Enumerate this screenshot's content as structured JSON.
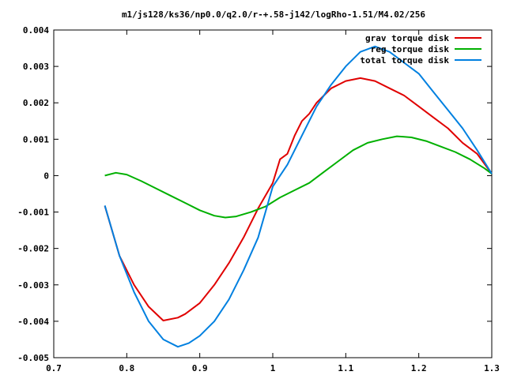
{
  "chart_data": {
    "type": "line",
    "title": "m1/js128/ks36/np0.0/q2.0/r-+.58-j142/logRho-1.51/M4.02/256",
    "xlabel": "",
    "ylabel": "",
    "xlim": [
      0.7,
      1.3
    ],
    "ylim": [
      -0.005,
      0.004
    ],
    "grid": false,
    "legend_position": "top-right",
    "x_ticks": [
      {
        "value": 0.7,
        "label": "0.7"
      },
      {
        "value": 0.8,
        "label": "0.8"
      },
      {
        "value": 0.9,
        "label": "0.9"
      },
      {
        "value": 1.0,
        "label": "1"
      },
      {
        "value": 1.1,
        "label": "1.1"
      },
      {
        "value": 1.2,
        "label": "1.2"
      },
      {
        "value": 1.3,
        "label": "1.3"
      }
    ],
    "y_ticks": [
      {
        "value": -0.005,
        "label": "-0.005"
      },
      {
        "value": -0.004,
        "label": "-0.004"
      },
      {
        "value": -0.003,
        "label": "-0.003"
      },
      {
        "value": -0.002,
        "label": "-0.002"
      },
      {
        "value": -0.001,
        "label": "-0.001"
      },
      {
        "value": 0,
        "label": "0"
      },
      {
        "value": 0.001,
        "label": "0.001"
      },
      {
        "value": 0.002,
        "label": "0.002"
      },
      {
        "value": 0.003,
        "label": "0.003"
      },
      {
        "value": 0.004,
        "label": "0.004"
      }
    ],
    "series": [
      {
        "name": "grav torque disk",
        "color": "#e00000",
        "points": [
          [
            0.77,
            -0.00083
          ],
          [
            0.79,
            -0.0022
          ],
          [
            0.81,
            -0.003
          ],
          [
            0.83,
            -0.0036
          ],
          [
            0.85,
            -0.00398
          ],
          [
            0.87,
            -0.0039
          ],
          [
            0.88,
            -0.0038
          ],
          [
            0.9,
            -0.0035
          ],
          [
            0.92,
            -0.003
          ],
          [
            0.94,
            -0.0024
          ],
          [
            0.96,
            -0.0017
          ],
          [
            0.98,
            -0.0009
          ],
          [
            1.0,
            -0.0002
          ],
          [
            1.01,
            0.00045
          ],
          [
            1.02,
            0.0006
          ],
          [
            1.03,
            0.0011
          ],
          [
            1.04,
            0.0015
          ],
          [
            1.05,
            0.0017
          ],
          [
            1.06,
            0.002
          ],
          [
            1.07,
            0.0022
          ],
          [
            1.08,
            0.0024
          ],
          [
            1.1,
            0.0026
          ],
          [
            1.12,
            0.00268
          ],
          [
            1.14,
            0.0026
          ],
          [
            1.16,
            0.0024
          ],
          [
            1.18,
            0.0022
          ],
          [
            1.2,
            0.0019
          ],
          [
            1.22,
            0.0016
          ],
          [
            1.24,
            0.0013
          ],
          [
            1.26,
            0.0009
          ],
          [
            1.28,
            0.0006
          ],
          [
            1.3,
            5e-05
          ]
        ]
      },
      {
        "name": "reg torque disk",
        "color": "#00b000",
        "points": [
          [
            0.77,
            0.0
          ],
          [
            0.785,
            8e-05
          ],
          [
            0.8,
            3e-05
          ],
          [
            0.82,
            -0.00015
          ],
          [
            0.84,
            -0.00035
          ],
          [
            0.86,
            -0.00055
          ],
          [
            0.88,
            -0.00075
          ],
          [
            0.9,
            -0.00095
          ],
          [
            0.92,
            -0.0011
          ],
          [
            0.935,
            -0.00115
          ],
          [
            0.95,
            -0.00112
          ],
          [
            0.97,
            -0.001
          ],
          [
            0.99,
            -0.00085
          ],
          [
            1.01,
            -0.0006
          ],
          [
            1.03,
            -0.0004
          ],
          [
            1.05,
            -0.0002
          ],
          [
            1.07,
            0.0001
          ],
          [
            1.09,
            0.0004
          ],
          [
            1.11,
            0.0007
          ],
          [
            1.13,
            0.0009
          ],
          [
            1.15,
            0.001
          ],
          [
            1.17,
            0.00108
          ],
          [
            1.19,
            0.00105
          ],
          [
            1.21,
            0.00095
          ],
          [
            1.23,
            0.0008
          ],
          [
            1.25,
            0.00065
          ],
          [
            1.27,
            0.00045
          ],
          [
            1.29,
            0.0002
          ],
          [
            1.3,
            5e-05
          ]
        ]
      },
      {
        "name": "total torque disk",
        "color": "#0080e0",
        "points": [
          [
            0.77,
            -0.00082
          ],
          [
            0.79,
            -0.0022
          ],
          [
            0.81,
            -0.0032
          ],
          [
            0.83,
            -0.004
          ],
          [
            0.85,
            -0.0045
          ],
          [
            0.87,
            -0.0047
          ],
          [
            0.885,
            -0.0046
          ],
          [
            0.9,
            -0.0044
          ],
          [
            0.92,
            -0.004
          ],
          [
            0.94,
            -0.0034
          ],
          [
            0.96,
            -0.0026
          ],
          [
            0.98,
            -0.0017
          ],
          [
            1.0,
            -0.0003
          ],
          [
            1.02,
            0.0003
          ],
          [
            1.04,
            0.0011
          ],
          [
            1.06,
            0.0019
          ],
          [
            1.08,
            0.0025
          ],
          [
            1.1,
            0.003
          ],
          [
            1.12,
            0.0034
          ],
          [
            1.14,
            0.00355
          ],
          [
            1.16,
            0.0034
          ],
          [
            1.18,
            0.0031
          ],
          [
            1.2,
            0.0028
          ],
          [
            1.22,
            0.0023
          ],
          [
            1.24,
            0.0018
          ],
          [
            1.26,
            0.0013
          ],
          [
            1.28,
            0.0007
          ],
          [
            1.3,
            5e-05
          ]
        ]
      }
    ]
  }
}
